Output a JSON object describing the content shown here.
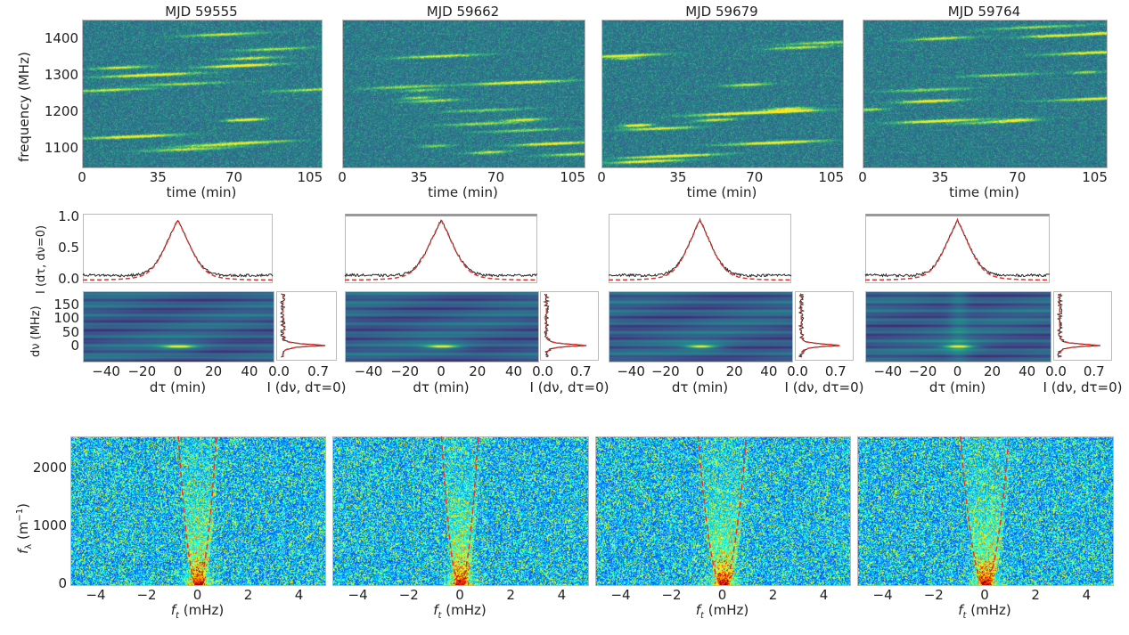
{
  "chart_data": [
    {
      "type": "heatmap",
      "name": "dynamic-spectra",
      "colormap": "viridis",
      "titles": [
        "MJD 59555",
        "MJD 59662",
        "MJD 59679",
        "MJD 59764"
      ],
      "xlabel": "time (min)",
      "ylabel": "frequency (MHz)",
      "xticks": [
        0,
        35,
        70,
        105
      ],
      "yticks": [
        1100,
        1200,
        1300,
        1400
      ],
      "xlim": [
        0,
        110
      ],
      "ylim": [
        1050,
        1450
      ]
    },
    {
      "type": "line",
      "name": "acf-time-cut",
      "ylabel": "I (dτ, dν=0)",
      "yticks": [
        "0.0",
        "0.5",
        "1.0"
      ],
      "xlim": [
        -53,
        53
      ],
      "ylim": [
        -0.05,
        1.05
      ],
      "series_colors": {
        "data": "#222222",
        "fit": "#e8322a"
      },
      "fit_style": "dashed"
    },
    {
      "type": "heatmap",
      "name": "acf-2d",
      "colormap": "viridis",
      "xlabel": "dτ (min)",
      "ylabel": "dν (MHz)",
      "xticks": [
        "−40",
        "−20",
        "0",
        "20",
        "40"
      ],
      "yticks": [
        "0",
        "50",
        "100",
        "150"
      ],
      "xlim": [
        -53,
        53
      ],
      "ylim": [
        -57,
        200
      ]
    },
    {
      "type": "line",
      "name": "acf-frequency-cut",
      "xlabel": "I (dν, dτ=0)",
      "xticks": [
        "0.0",
        "0.7"
      ],
      "xlim": [
        0,
        1.08
      ]
    },
    {
      "type": "heatmap",
      "name": "secondary-spectra",
      "colormap": "jet",
      "xlabel_main": "f",
      "xlabel_sub": "t",
      "xlabel_unit": " (mHz)",
      "ylabel_main": "f",
      "ylabel_sub": "λ",
      "ylabel_unit": " (m",
      "ylabel_exp": "−1",
      "ylabel_close": ")",
      "xticks": [
        "−4",
        "−2",
        "0",
        "2",
        "4"
      ],
      "yticks": [
        "0",
        "1000",
        "2000"
      ],
      "xlim": [
        -5,
        5
      ],
      "ylim": [
        0,
        2550
      ],
      "arc_color": "#e8322a",
      "arc_style": "dashed"
    }
  ]
}
